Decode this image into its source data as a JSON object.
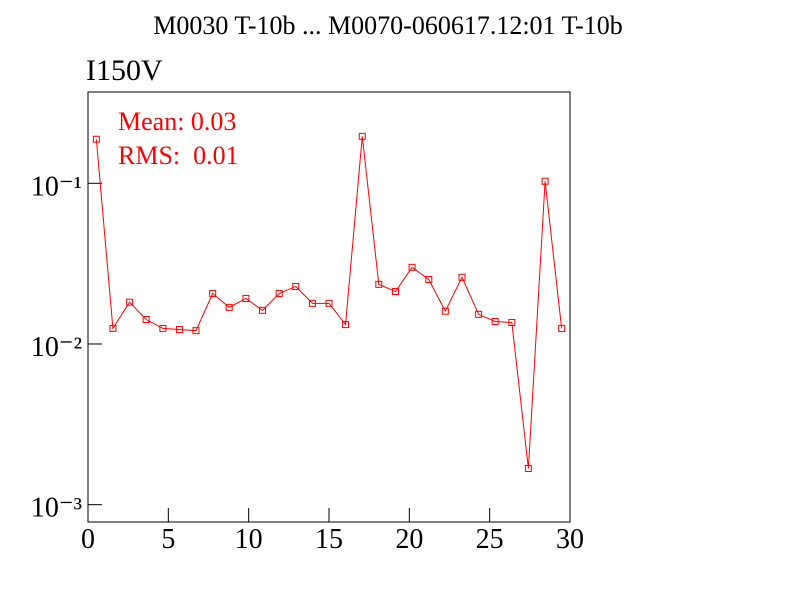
{
  "chart_data": {
    "type": "line",
    "title": "M0030 T-10b ... M0070-060617.12:01 T-10b",
    "subtitle": "I150V",
    "annotations": [
      "Mean: 0.03",
      "RMS:  0.01"
    ],
    "x": [
      0.52,
      1.55,
      2.59,
      3.62,
      4.66,
      5.69,
      6.72,
      7.76,
      8.79,
      9.83,
      10.86,
      11.9,
      12.93,
      13.97,
      15.0,
      16.03,
      17.07,
      18.1,
      19.14,
      20.17,
      21.21,
      22.24,
      23.28,
      24.31,
      25.34,
      26.38,
      27.41,
      28.45,
      29.48
    ],
    "series": [
      {
        "color": "#ff0000",
        "values": [
          0.188,
          0.0125,
          0.0182,
          0.0142,
          0.0125,
          0.0123,
          0.0121,
          0.0206,
          0.0169,
          0.0192,
          0.0162,
          0.0206,
          0.0228,
          0.0179,
          0.0179,
          0.0132,
          0.196,
          0.0235,
          0.0212,
          0.03,
          0.0252,
          0.016,
          0.026,
          0.0153,
          0.0138,
          0.0136,
          0.00168,
          0.103,
          0.0125
        ]
      }
    ],
    "xlim": [
      0,
      30
    ],
    "xticks": [
      0,
      5,
      10,
      15,
      20,
      25,
      30
    ],
    "ylim": [
      0.00078,
      0.37
    ],
    "yticks": [
      {
        "value": 0.001,
        "label": "10⁻³"
      },
      {
        "value": 0.01,
        "label": "10⁻²"
      },
      {
        "value": 0.1,
        "label": "10⁻¹"
      }
    ],
    "log_y": true
  }
}
